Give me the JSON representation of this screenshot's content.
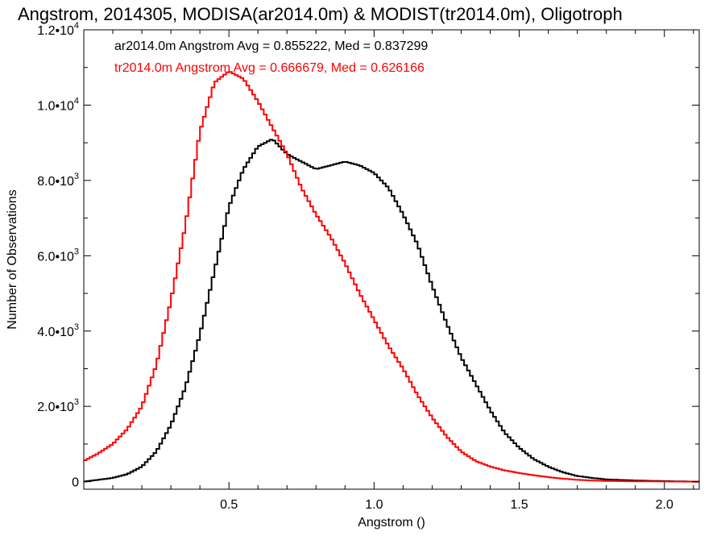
{
  "chart_data": {
    "type": "line",
    "title": "Angstrom, 2014305, MODISA(ar2014.0m) & MODIST(tr2014.0m), Oligotroph",
    "xlabel": "Angstrom ()",
    "ylabel": "Number of Observations",
    "xlim": [
      0.0,
      2.12
    ],
    "ylim": [
      -200,
      12000
    ],
    "x_ticks": [
      {
        "value": 0.5,
        "label": "0.5"
      },
      {
        "value": 1.0,
        "label": "1.0"
      },
      {
        "value": 1.5,
        "label": "1.5"
      },
      {
        "value": 2.0,
        "label": "2.0"
      }
    ],
    "y_ticks": [
      {
        "value": 0,
        "mant": "0",
        "exp": ""
      },
      {
        "value": 2000,
        "mant": "2.0•10",
        "exp": "3"
      },
      {
        "value": 4000,
        "mant": "4.0•10",
        "exp": "3"
      },
      {
        "value": 6000,
        "mant": "6.0•10",
        "exp": "3"
      },
      {
        "value": 8000,
        "mant": "8.0•10",
        "exp": "3"
      },
      {
        "value": 10000,
        "mant": "1.0•10",
        "exp": "4"
      },
      {
        "value": 12000,
        "mant": "1.2•10",
        "exp": "4"
      }
    ],
    "grid": false,
    "step": "histogram",
    "series": [
      {
        "legend": "ar2014.0m Angstrom Avg = 0.855222, Med = 0.837299",
        "color": "#000000",
        "x": [
          0.0,
          0.05,
          0.1,
          0.15,
          0.2,
          0.25,
          0.3,
          0.35,
          0.4,
          0.45,
          0.5,
          0.55,
          0.6,
          0.65,
          0.7,
          0.75,
          0.8,
          0.85,
          0.9,
          0.95,
          1.0,
          1.05,
          1.1,
          1.15,
          1.2,
          1.25,
          1.3,
          1.35,
          1.4,
          1.45,
          1.5,
          1.55,
          1.6,
          1.65,
          1.7,
          1.75,
          1.8,
          1.9,
          2.0,
          2.12
        ],
        "y": [
          0,
          50,
          100,
          200,
          400,
          800,
          1500,
          2500,
          3900,
          5600,
          7300,
          8300,
          8900,
          9100,
          8700,
          8500,
          8300,
          8400,
          8500,
          8400,
          8200,
          7800,
          7100,
          6300,
          5200,
          4200,
          3300,
          2600,
          1900,
          1300,
          900,
          600,
          400,
          250,
          150,
          100,
          60,
          30,
          15,
          0
        ]
      },
      {
        "legend": "tr2014.0m Angstrom Avg = 0.666679, Med = 0.626166",
        "color": "#ff0000",
        "x": [
          0.0,
          0.05,
          0.1,
          0.15,
          0.2,
          0.25,
          0.3,
          0.35,
          0.4,
          0.45,
          0.5,
          0.55,
          0.6,
          0.65,
          0.7,
          0.75,
          0.8,
          0.85,
          0.9,
          0.95,
          1.0,
          1.05,
          1.1,
          1.15,
          1.2,
          1.25,
          1.3,
          1.35,
          1.4,
          1.45,
          1.5,
          1.55,
          1.6,
          1.65,
          1.7,
          1.75,
          1.8,
          1.9,
          2.0,
          2.12
        ],
        "y": [
          550,
          750,
          1000,
          1400,
          2000,
          3100,
          4800,
          6800,
          9300,
          10600,
          10900,
          10700,
          10100,
          9400,
          8700,
          7800,
          7100,
          6500,
          5800,
          5000,
          4300,
          3600,
          3000,
          2300,
          1700,
          1200,
          800,
          550,
          400,
          300,
          230,
          170,
          120,
          80,
          50,
          30,
          20,
          10,
          5,
          0
        ]
      }
    ]
  }
}
